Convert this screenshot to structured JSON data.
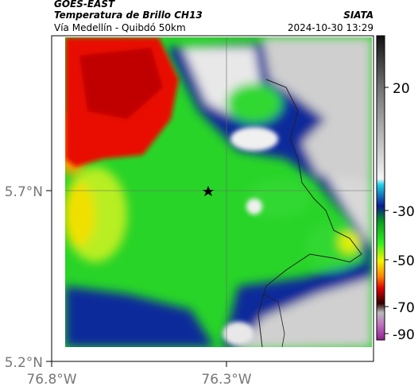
{
  "header": {
    "source": "GOES-EAST",
    "title": "Temperatura de Brillo CH13",
    "agency": "SIATA",
    "subtitle": "Vía Medellín - Quibdó 50km",
    "timestamp": "2024-10-30 13:29"
  },
  "map": {
    "lat_labels": [
      "5.7°N",
      "5.2°N"
    ],
    "lon_labels": [
      "76.8°W",
      "76.3°W"
    ]
  },
  "colorbar": {
    "ticks": [
      20,
      -30,
      -50,
      -70,
      -90
    ]
  }
}
